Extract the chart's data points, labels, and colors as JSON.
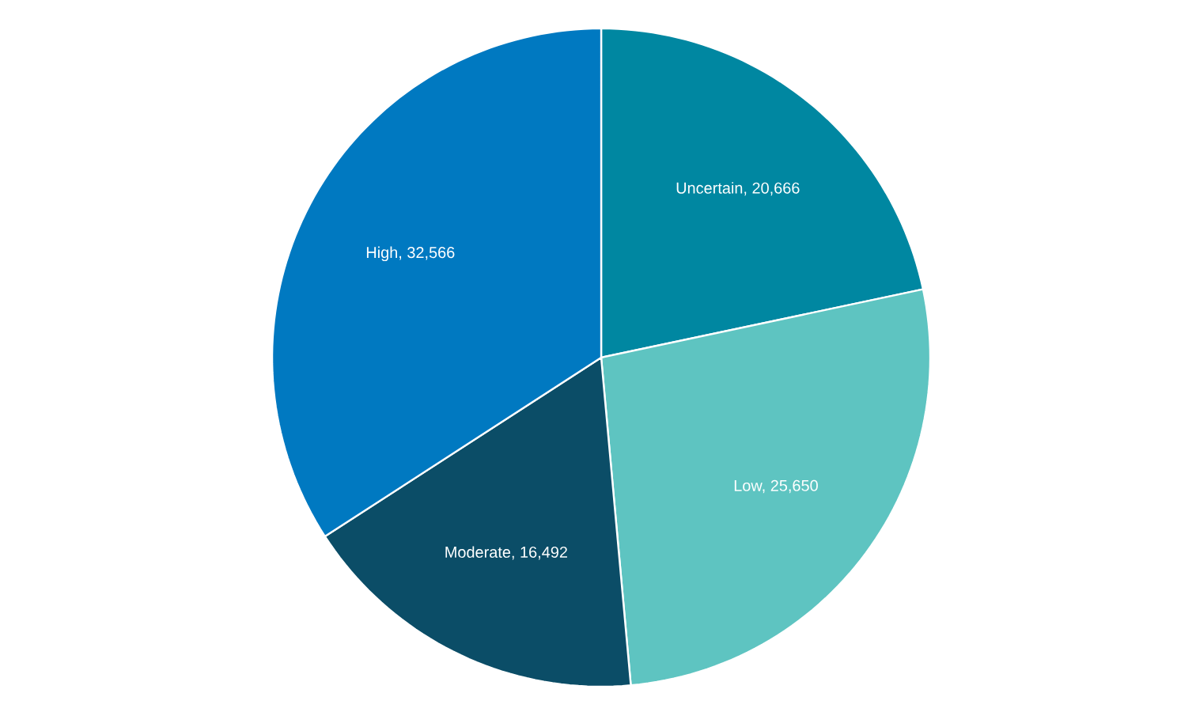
{
  "chart_data": {
    "type": "pie",
    "categories": [
      null,
      null,
      null,
      null
    ],
    "values": [
      20666,
      25650,
      16492,
      32566
    ],
    "value_labels": [
      "Uncertain,  20,666",
      "Low,  25,650",
      "Moderate,  16,492",
      "High,  32,566"
    ],
    "colors": [
      "#0087a1",
      "#5ec4c1",
      "#0b4d67",
      "#0079c1"
    ]
  }
}
